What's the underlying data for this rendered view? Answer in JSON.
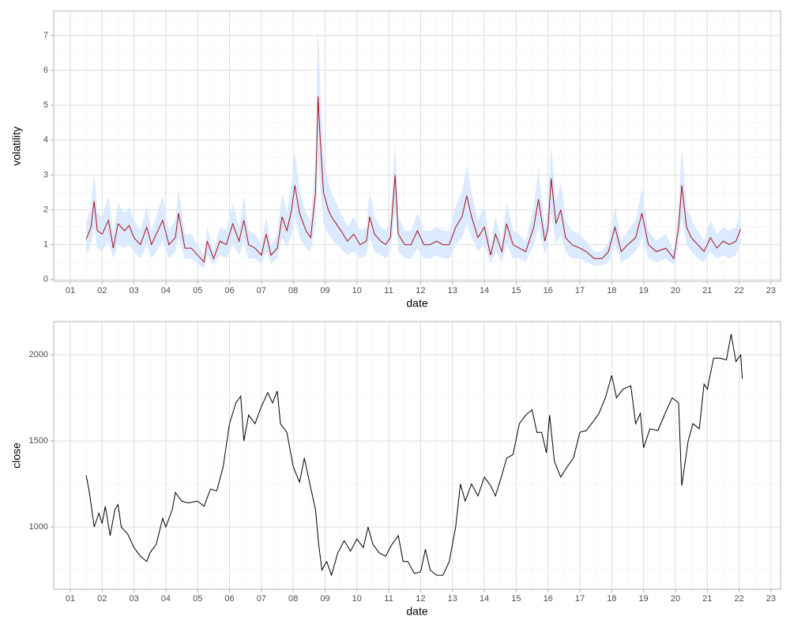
{
  "chart_data": [
    {
      "type": "line",
      "x_label": "date",
      "y_label": "volatility",
      "color": "#a50f15",
      "band": {
        "color": "#dbeafe",
        "lower": [
          0.7,
          1.0,
          1.5,
          0.9,
          0.8,
          1.1,
          0.6,
          1.0,
          0.9,
          1.0,
          0.8,
          0.6,
          1.0,
          0.6,
          0.8,
          1.1,
          0.6,
          0.8,
          1.2,
          0.6,
          0.6,
          0.45,
          0.3,
          0.7,
          0.4,
          0.7,
          0.6,
          1.0,
          0.7,
          1.1,
          0.6,
          0.6,
          0.45,
          0.8,
          0.45,
          0.6,
          1.2,
          0.9,
          1.3,
          1.8,
          1.2,
          0.9,
          0.8,
          1.6,
          3.4,
          2.6,
          1.6,
          1.3,
          1.2,
          1.0,
          0.9,
          0.7,
          0.8,
          0.6,
          0.7,
          1.2,
          0.8,
          0.7,
          0.6,
          0.8,
          2.0,
          0.8,
          0.6,
          0.6,
          0.9,
          0.6,
          0.6,
          0.7,
          0.6,
          0.6,
          1.0,
          1.2,
          1.6,
          1.2,
          0.8,
          1.0,
          0.45,
          0.8,
          0.5,
          1.0,
          0.6,
          0.6,
          0.5,
          1.0,
          1.5,
          0.7,
          1.0,
          1.9,
          1.0,
          1.3,
          0.8,
          0.6,
          0.6,
          0.5,
          0.4,
          0.4,
          0.5,
          1.0,
          0.5,
          0.6,
          0.8,
          1.2,
          0.6,
          0.5,
          0.6,
          0.4,
          1.0,
          1.8,
          1.0,
          0.8,
          0.6,
          0.5,
          0.8,
          0.6,
          0.7,
          0.6,
          0.7,
          1.0
        ],
        "upper": [
          1.6,
          2.1,
          3.1,
          1.9,
          1.8,
          2.4,
          1.3,
          2.2,
          1.9,
          2.1,
          1.7,
          1.4,
          2.1,
          1.4,
          1.8,
          2.4,
          1.4,
          1.7,
          2.6,
          1.3,
          1.3,
          1.0,
          0.7,
          1.5,
          0.8,
          1.5,
          1.4,
          2.2,
          1.5,
          2.4,
          1.4,
          1.3,
          1.0,
          1.8,
          1.0,
          1.3,
          2.5,
          1.9,
          2.8,
          3.7,
          2.6,
          1.9,
          1.7,
          3.5,
          7.3,
          5.6,
          3.5,
          2.8,
          2.5,
          2.2,
          1.9,
          1.5,
          1.8,
          1.4,
          1.5,
          2.5,
          1.8,
          1.5,
          1.4,
          1.7,
          4.0,
          1.8,
          1.4,
          1.4,
          1.9,
          1.4,
          1.4,
          1.5,
          1.4,
          1.4,
          2.1,
          2.5,
          3.3,
          2.5,
          1.7,
          2.1,
          1.0,
          1.8,
          1.1,
          2.2,
          1.4,
          1.3,
          1.1,
          2.1,
          3.2,
          1.5,
          2.1,
          3.9,
          2.2,
          2.8,
          1.7,
          1.4,
          1.3,
          1.1,
          0.8,
          0.8,
          1.1,
          2.1,
          1.1,
          1.4,
          1.7,
          2.6,
          1.4,
          1.1,
          1.3,
          0.8,
          2.1,
          3.8,
          2.1,
          1.7,
          1.4,
          1.1,
          1.7,
          1.3,
          1.5,
          1.4,
          1.5,
          2.0
        ]
      },
      "x": [
        1.5,
        1.65,
        1.75,
        1.85,
        2.0,
        2.2,
        2.35,
        2.5,
        2.7,
        2.85,
        3.0,
        3.2,
        3.4,
        3.55,
        3.7,
        3.9,
        4.1,
        4.3,
        4.4,
        4.6,
        4.8,
        5.0,
        5.2,
        5.3,
        5.5,
        5.7,
        5.9,
        6.1,
        6.3,
        6.45,
        6.6,
        6.8,
        7.0,
        7.15,
        7.3,
        7.5,
        7.65,
        7.8,
        7.95,
        8.05,
        8.2,
        8.4,
        8.55,
        8.7,
        8.78,
        8.85,
        8.95,
        9.1,
        9.2,
        9.35,
        9.5,
        9.7,
        9.9,
        10.1,
        10.3,
        10.4,
        10.55,
        10.75,
        10.9,
        11.05,
        11.2,
        11.3,
        11.5,
        11.7,
        11.9,
        12.1,
        12.3,
        12.5,
        12.7,
        12.9,
        13.1,
        13.3,
        13.45,
        13.6,
        13.8,
        14.0,
        14.2,
        14.35,
        14.55,
        14.7,
        14.9,
        15.1,
        15.3,
        15.55,
        15.7,
        15.9,
        16.0,
        16.1,
        16.25,
        16.4,
        16.55,
        16.75,
        17.0,
        17.2,
        17.45,
        17.7,
        17.9,
        18.1,
        18.3,
        18.5,
        18.75,
        18.95,
        19.15,
        19.4,
        19.7,
        19.95,
        20.1,
        20.2,
        20.35,
        20.5,
        20.7,
        20.9,
        21.1,
        21.3,
        21.5,
        21.7,
        21.9,
        22.05
      ],
      "values": [
        1.15,
        1.5,
        2.25,
        1.4,
        1.3,
        1.7,
        0.9,
        1.6,
        1.4,
        1.55,
        1.2,
        1.0,
        1.5,
        1.0,
        1.3,
        1.7,
        1.0,
        1.2,
        1.9,
        0.9,
        0.9,
        0.7,
        0.5,
        1.1,
        0.6,
        1.1,
        1.0,
        1.6,
        1.1,
        1.7,
        1.0,
        0.9,
        0.7,
        1.3,
        0.7,
        0.9,
        1.8,
        1.4,
        2.0,
        2.7,
        1.9,
        1.4,
        1.2,
        2.5,
        5.25,
        4.0,
        2.5,
        2.0,
        1.8,
        1.6,
        1.4,
        1.1,
        1.3,
        1.0,
        1.1,
        1.8,
        1.3,
        1.1,
        1.0,
        1.2,
        3.0,
        1.3,
        1.0,
        1.0,
        1.4,
        1.0,
        1.0,
        1.1,
        1.0,
        1.0,
        1.5,
        1.8,
        2.4,
        1.8,
        1.2,
        1.5,
        0.7,
        1.3,
        0.8,
        1.6,
        1.0,
        0.9,
        0.8,
        1.5,
        2.3,
        1.1,
        1.5,
        2.9,
        1.6,
        2.0,
        1.2,
        1.0,
        0.9,
        0.8,
        0.6,
        0.6,
        0.8,
        1.5,
        0.8,
        1.0,
        1.2,
        1.9,
        1.0,
        0.8,
        0.9,
        0.6,
        1.5,
        2.7,
        1.5,
        1.2,
        1.0,
        0.8,
        1.2,
        0.9,
        1.1,
        1.0,
        1.1,
        1.45
      ],
      "xlim": [
        0.48,
        23.3
      ],
      "xticks": [
        {
          "value": 1,
          "label": "01"
        },
        {
          "value": 2,
          "label": "02"
        },
        {
          "value": 3,
          "label": "03"
        },
        {
          "value": 4,
          "label": "04"
        },
        {
          "value": 5,
          "label": "05"
        },
        {
          "value": 6,
          "label": "06"
        },
        {
          "value": 7,
          "label": "07"
        },
        {
          "value": 8,
          "label": "08"
        },
        {
          "value": 9,
          "label": "09"
        },
        {
          "value": 10,
          "label": "10"
        },
        {
          "value": 11,
          "label": "11"
        },
        {
          "value": 12,
          "label": "12"
        },
        {
          "value": 13,
          "label": "13"
        },
        {
          "value": 14,
          "label": "14"
        },
        {
          "value": 15,
          "label": "15"
        },
        {
          "value": 16,
          "label": "16"
        },
        {
          "value": 17,
          "label": "17"
        },
        {
          "value": 18,
          "label": "18"
        },
        {
          "value": 19,
          "label": "19"
        },
        {
          "value": 20,
          "label": "20"
        },
        {
          "value": 21,
          "label": "21"
        },
        {
          "value": 22,
          "label": "22"
        },
        {
          "value": 23,
          "label": "23"
        }
      ],
      "ylim": [
        -0.05,
        7.7
      ],
      "yticks": [
        0,
        1,
        2,
        3,
        4,
        5,
        6,
        7
      ],
      "grid": true
    },
    {
      "type": "line",
      "x_label": "date",
      "y_label": "close",
      "color": "#000000",
      "x": [
        1.5,
        1.6,
        1.75,
        1.9,
        2.0,
        2.1,
        2.25,
        2.4,
        2.5,
        2.6,
        2.8,
        3.0,
        3.2,
        3.4,
        3.5,
        3.7,
        3.9,
        4.0,
        4.2,
        4.3,
        4.5,
        4.7,
        5.0,
        5.2,
        5.4,
        5.6,
        5.8,
        6.0,
        6.2,
        6.35,
        6.45,
        6.6,
        6.8,
        7.0,
        7.2,
        7.35,
        7.5,
        7.6,
        7.8,
        8.0,
        8.2,
        8.35,
        8.5,
        8.7,
        8.8,
        8.9,
        9.05,
        9.2,
        9.4,
        9.6,
        9.8,
        10.0,
        10.2,
        10.35,
        10.5,
        10.7,
        10.9,
        11.1,
        11.3,
        11.45,
        11.6,
        11.8,
        12.0,
        12.15,
        12.3,
        12.5,
        12.7,
        12.9,
        13.1,
        13.25,
        13.4,
        13.6,
        13.8,
        14.0,
        14.2,
        14.35,
        14.55,
        14.7,
        14.9,
        15.1,
        15.3,
        15.5,
        15.65,
        15.8,
        15.95,
        16.05,
        16.2,
        16.4,
        16.6,
        16.8,
        17.0,
        17.2,
        17.45,
        17.6,
        17.8,
        18.0,
        18.15,
        18.35,
        18.6,
        18.75,
        18.9,
        19.0,
        19.2,
        19.45,
        19.7,
        19.9,
        20.1,
        20.2,
        20.4,
        20.55,
        20.75,
        20.9,
        21.0,
        21.2,
        21.4,
        21.6,
        21.75,
        21.9,
        22.05,
        22.1
      ],
      "values": [
        1300,
        1200,
        1000,
        1080,
        1020,
        1120,
        950,
        1100,
        1130,
        1000,
        960,
        880,
        830,
        800,
        850,
        900,
        1050,
        1000,
        1100,
        1200,
        1150,
        1140,
        1150,
        1120,
        1220,
        1210,
        1350,
        1600,
        1720,
        1760,
        1500,
        1650,
        1600,
        1700,
        1780,
        1720,
        1790,
        1600,
        1550,
        1350,
        1260,
        1400,
        1270,
        1100,
        900,
        750,
        800,
        720,
        850,
        920,
        860,
        930,
        880,
        1000,
        900,
        850,
        830,
        900,
        950,
        800,
        800,
        730,
        740,
        870,
        750,
        720,
        720,
        800,
        1000,
        1250,
        1150,
        1250,
        1180,
        1290,
        1240,
        1180,
        1300,
        1400,
        1420,
        1600,
        1650,
        1680,
        1550,
        1550,
        1430,
        1650,
        1380,
        1290,
        1350,
        1400,
        1550,
        1560,
        1620,
        1660,
        1750,
        1880,
        1750,
        1800,
        1820,
        1600,
        1660,
        1460,
        1570,
        1560,
        1670,
        1750,
        1720,
        1240,
        1500,
        1600,
        1570,
        1830,
        1800,
        1980,
        1980,
        1970,
        2120,
        1960,
        2000,
        1860
      ],
      "xlim": [
        0.48,
        23.3
      ],
      "xticks": [
        {
          "value": 1,
          "label": "01"
        },
        {
          "value": 2,
          "label": "02"
        },
        {
          "value": 3,
          "label": "03"
        },
        {
          "value": 4,
          "label": "04"
        },
        {
          "value": 5,
          "label": "05"
        },
        {
          "value": 6,
          "label": "06"
        },
        {
          "value": 7,
          "label": "07"
        },
        {
          "value": 8,
          "label": "08"
        },
        {
          "value": 9,
          "label": "09"
        },
        {
          "value": 10,
          "label": "10"
        },
        {
          "value": 11,
          "label": "11"
        },
        {
          "value": 12,
          "label": "12"
        },
        {
          "value": 13,
          "label": "13"
        },
        {
          "value": 14,
          "label": "14"
        },
        {
          "value": 15,
          "label": "15"
        },
        {
          "value": 16,
          "label": "16"
        },
        {
          "value": 17,
          "label": "17"
        },
        {
          "value": 18,
          "label": "18"
        },
        {
          "value": 19,
          "label": "19"
        },
        {
          "value": 20,
          "label": "20"
        },
        {
          "value": 21,
          "label": "21"
        },
        {
          "value": 22,
          "label": "22"
        },
        {
          "value": 23,
          "label": "23"
        }
      ],
      "ylim": [
        638,
        2193
      ],
      "yticks": [
        1000,
        1500,
        2000
      ],
      "grid": true
    }
  ]
}
